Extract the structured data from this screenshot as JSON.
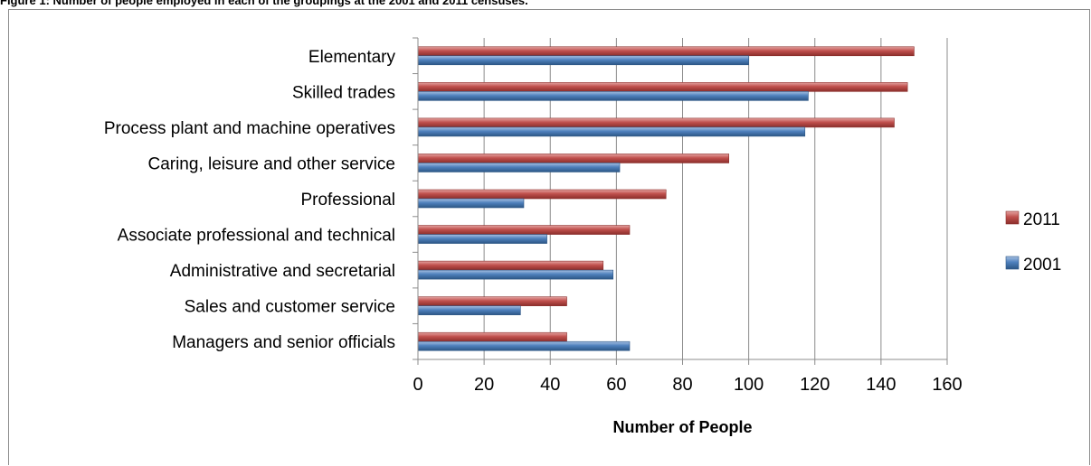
{
  "figure": {
    "title": "Figure 1: Number of people employed in each of the groupings at the 2001 and 2011 censuses."
  },
  "chart_data": {
    "type": "bar",
    "orientation": "horizontal",
    "categories": [
      "Managers and senior officials",
      "Sales and customer service",
      "Administrative and secretarial",
      "Associate professional and technical",
      "Professional",
      "Caring, leisure and other service",
      "Process plant and machine operatives",
      "Skilled trades",
      "Elementary"
    ],
    "series": [
      {
        "name": "2011",
        "color": "#c0504d",
        "values": [
          45,
          45,
          56,
          64,
          75,
          94,
          144,
          148,
          150
        ]
      },
      {
        "name": "2001",
        "color": "#4f81bd",
        "values": [
          64,
          31,
          59,
          39,
          32,
          61,
          117,
          118,
          100
        ]
      }
    ],
    "xlabel": "Number of People",
    "xlim": [
      0,
      160
    ],
    "xticks": [
      0,
      20,
      40,
      60,
      80,
      100,
      120,
      140,
      160
    ],
    "grid": true,
    "legend_position": "right"
  }
}
